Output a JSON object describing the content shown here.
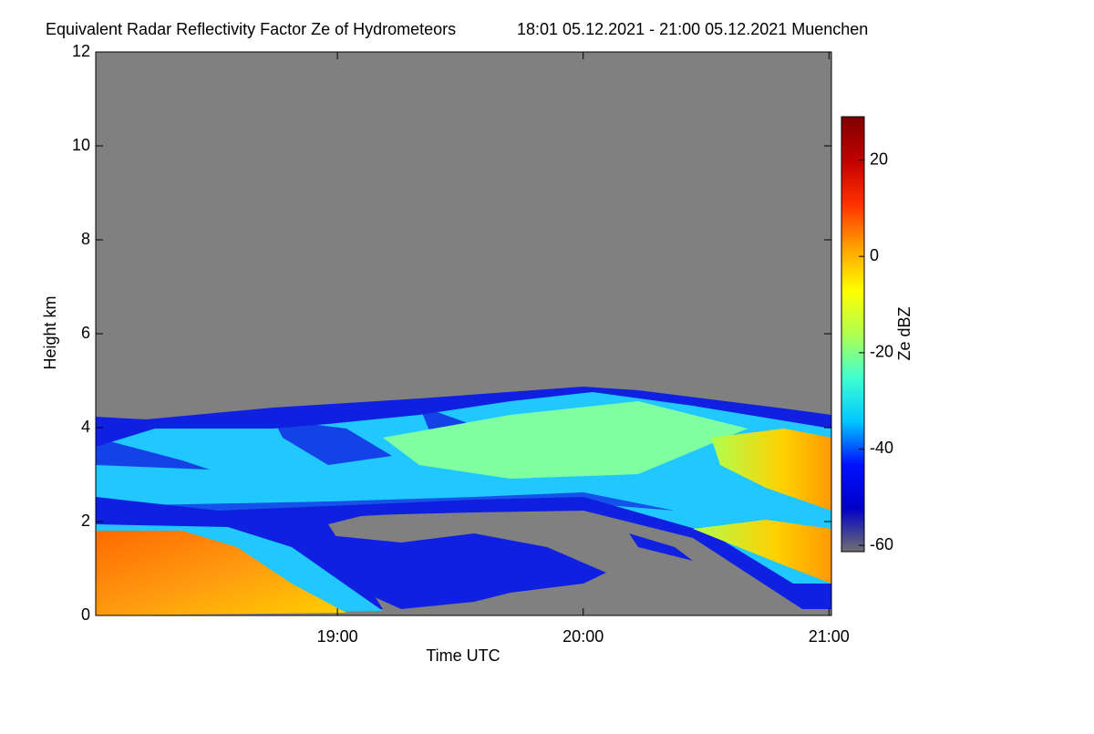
{
  "chart_data": {
    "type": "heatmap",
    "title": "Equivalent Radar Reflectivity Factor Ze of Hydrometeors",
    "subtitle": "18:01 05.12.2021 - 21:00 05.12.2021 Muenchen",
    "x_label": "Time UTC",
    "y_label": "Height km",
    "xlim": [
      18.0167,
      21.01
    ],
    "xticks": [
      {
        "value": 19,
        "label": "19:00"
      },
      {
        "value": 20,
        "label": "20:00"
      },
      {
        "value": 21,
        "label": "21:00"
      }
    ],
    "ylim": [
      0,
      12
    ],
    "yticks": [
      0,
      2,
      4,
      6,
      8,
      10,
      12
    ],
    "colorbar_label": "Ze dBZ",
    "clim": [
      -61.3,
      29
    ],
    "colorbar_ticks": [
      20,
      0,
      -20,
      -40,
      -60
    ],
    "colormap": [
      "#707070",
      "#0000c8",
      "#0010ff",
      "#00c8ff",
      "#40ffd0",
      "#b0ff50",
      "#ffff00",
      "#ffa000",
      "#ff3000",
      "#c00000",
      "#800000"
    ],
    "background": "#808080"
  }
}
